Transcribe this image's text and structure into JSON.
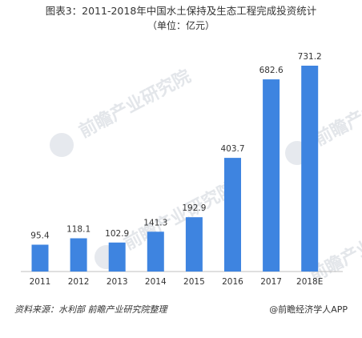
{
  "header": {
    "title": "图表3：2011-2018年中国水土保持及生态工程完成投资统计",
    "subtitle": "（单位：亿元）"
  },
  "footer": {
    "source": "资料来源：水利部 前瞻产业研究院整理",
    "brand": "@前瞻经济学人APP"
  },
  "watermark": {
    "text": "前瞻产业研究院"
  },
  "colors": {
    "bar": "#3E84E0",
    "axis": "#bfbfbf",
    "label": "#333333"
  },
  "chart_data": {
    "type": "bar",
    "title": "图表3：2011-2018年中国水土保持及生态工程完成投资统计",
    "subtitle": "（单位：亿元）",
    "categories": [
      "2011",
      "2012",
      "2013",
      "2014",
      "2015",
      "2016",
      "2017",
      "2018E"
    ],
    "values": [
      95.4,
      118.1,
      102.9,
      141.3,
      192.9,
      403.7,
      682.6,
      731.2
    ],
    "data_labels": [
      "95.4",
      "118.1",
      "102.9",
      "141.3",
      "192.9",
      "403.7",
      "682.6",
      "731.2"
    ],
    "xlabel": "",
    "ylabel": "",
    "ylim": [
      0,
      800
    ],
    "grid": false,
    "legend": "none"
  }
}
